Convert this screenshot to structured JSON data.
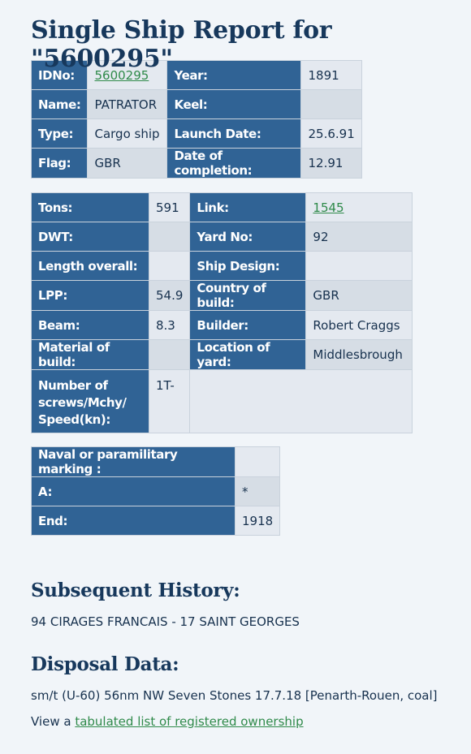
{
  "title": "Single Ship Report for \"5600295\"",
  "basic": {
    "idno_label": "IDNo:",
    "idno_value": "5600295",
    "year_label": "Year:",
    "year_value": "1891",
    "name_label": "Name:",
    "name_value": "PATRATOR",
    "keel_label": "Keel:",
    "keel_value": "",
    "type_label": "Type:",
    "type_value": "Cargo ship",
    "launch_label": "Launch Date:",
    "launch_value": "25.6.91",
    "flag_label": "Flag:",
    "flag_value": "GBR",
    "completion_label": "Date of completion:",
    "completion_value": "12.91"
  },
  "specs": {
    "tons_label": "Tons:",
    "tons_value": "591",
    "link_label": "Link:",
    "link_value": "1545",
    "dwt_label": "DWT:",
    "dwt_value": "",
    "yard_label": "Yard No:",
    "yard_value": "92",
    "length_label": "Length overall:",
    "length_value": "",
    "design_label": "Ship Design:",
    "design_value": "",
    "lpp_label": "LPP:",
    "lpp_value": "54.9",
    "country_label": "Country of build:",
    "country_value": "GBR",
    "beam_label": "Beam:",
    "beam_value": "8.3",
    "builder_label": "Builder:",
    "builder_value": "Robert Craggs",
    "material_label": "Material of build:",
    "material_value": "",
    "location_label": "Location of yard:",
    "location_value": "Middlesbrough",
    "screws_label": "Number of screws/Mchy/ Speed(kn):",
    "screws_value": "1T-"
  },
  "naval": {
    "marking_label": "Naval or paramilitary marking :",
    "marking_value": "",
    "a_label": "A:",
    "a_value": "*",
    "end_label": "End:",
    "end_value": "1918"
  },
  "history": {
    "heading": "Subsequent History:",
    "text": "94 CIRAGES FRANCAIS - 17 SAINT GEORGES"
  },
  "disposal": {
    "heading": "Disposal Data:",
    "text": "sm/t (U-60) 56nm NW Seven Stones 17.7.18 [Penarth-Rouen, coal]"
  },
  "ownership": {
    "prefix": "View a ",
    "link_text": "tabulated list of registered ownership"
  }
}
